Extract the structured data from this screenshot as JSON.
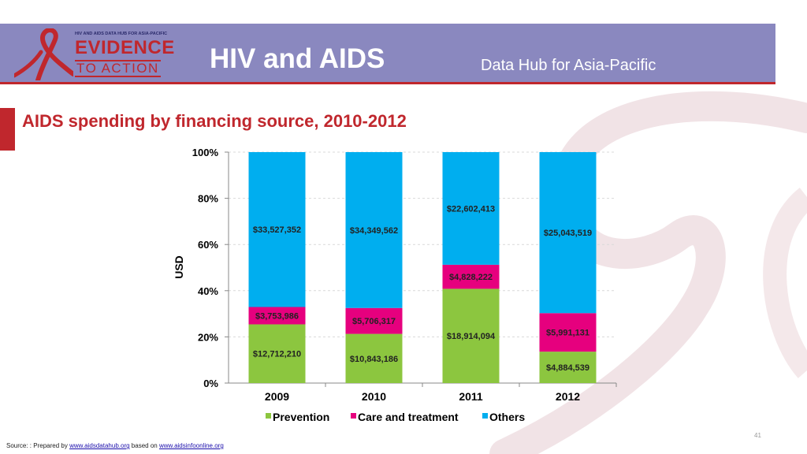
{
  "header": {
    "logo_small": "HIV AND AIDS DATA HUB FOR ASIA-PACIFIC",
    "logo_main": "EVIDENCE",
    "logo_sub": "TO ACTION",
    "title": "HIV and AIDS",
    "subtitle": "Data Hub for Asia-Pacific"
  },
  "slide_title": "AIDS spending by financing source, 2010-2012",
  "colors": {
    "header_band": "#8a88bf",
    "accent_red": "#c0272d",
    "prevention": "#8cc63f",
    "care": "#e6007e",
    "others": "#00aeef"
  },
  "chart_data": {
    "type": "bar",
    "stacked": "percent",
    "categories": [
      "2009",
      "2010",
      "2011",
      "2012"
    ],
    "ylabel": "USD",
    "ylim": [
      0,
      100
    ],
    "yticks": [
      "0%",
      "20%",
      "40%",
      "60%",
      "80%",
      "100%"
    ],
    "legend_position": "bottom",
    "series": [
      {
        "name": "Prevention",
        "values": [
          12712210,
          10843186,
          18914094,
          4884539
        ],
        "labels": [
          "$12,712,210",
          "$10,843,186",
          "$18,914,094",
          "$4,884,539"
        ]
      },
      {
        "name": "Care and treatment",
        "values": [
          3753986,
          5706317,
          4828222,
          5991131
        ],
        "labels": [
          "$3,753,986",
          "$5,706,317",
          "$4,828,222",
          "$5,991,131"
        ]
      },
      {
        "name": "Others",
        "values": [
          33527352,
          34349562,
          22602413,
          25043519
        ],
        "labels": [
          "$33,527,352",
          "$34,349,562",
          "$22,602,413",
          "$25,043,519"
        ]
      }
    ]
  },
  "footer": {
    "source_prefix": "Source: : Prepared by",
    "source_link1": "www.aidsdatahub.org",
    "source_mid": "based on",
    "source_link2": "www.aidsinfoonline.org",
    "page_number": "41"
  }
}
